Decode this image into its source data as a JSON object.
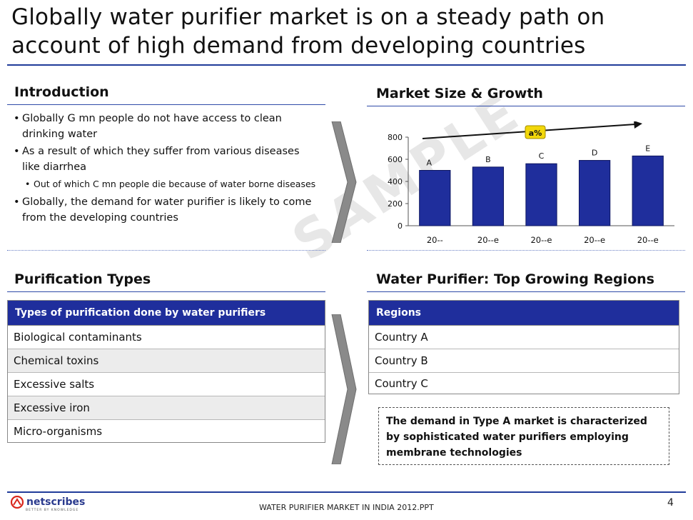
{
  "slide": {
    "title": "Globally water purifier market is on a steady path on account of high demand from developing countries",
    "page_number": "4",
    "footer_text": "WATER PURIFIER  MARKET IN INDIA 2012.PPT",
    "watermark": "SAMPLE",
    "logo": {
      "name": "netscribes",
      "tagline": "BETTER BY KNOWLEDGE",
      "icon": "netscribes-logo-icon"
    }
  },
  "introduction": {
    "heading": "Introduction",
    "bullets": [
      "Globally G mn people do not have access to clean drinking water",
      "As a result of which they suffer from various diseases like diarrhea"
    ],
    "sub_bullet": "Out of which C  mn people die because of water borne diseases",
    "last_bullet": "Globally, the demand for water purifier is likely to come from the developing countries"
  },
  "market": {
    "heading": "Market Size & Growth",
    "cagr_label": "a%"
  },
  "chart_data": {
    "type": "bar",
    "categories": [
      "20--",
      "20--e",
      "20--e",
      "20--e",
      "20--e"
    ],
    "values": [
      500,
      530,
      560,
      590,
      630
    ],
    "data_labels": [
      "A",
      "B",
      "C",
      "D",
      "E"
    ],
    "yticks": [
      0,
      200,
      400,
      600,
      800
    ],
    "ylim": [
      0,
      800
    ],
    "bar_color": "#1f2e9c",
    "title": "",
    "xlabel": "",
    "ylabel": "",
    "grid": false
  },
  "purification": {
    "heading": "Purification Types",
    "table_header": "Types of purification done by water purifiers",
    "rows": [
      "Biological contaminants",
      "Chemical toxins",
      "Excessive salts",
      "Excessive iron",
      "Micro-organisms"
    ]
  },
  "regions": {
    "heading": "Water Purifier: Top Growing Regions",
    "table_header": "Regions",
    "rows": [
      "Country A",
      "Country B",
      "Country C"
    ]
  },
  "note": "The demand in Type A  market is characterized by  sophisticated water purifiers employing membrane technologies",
  "colors": {
    "accent": "#1f2e9c",
    "rule": "#203c9a",
    "alt_row": "#ececec",
    "arrow": "#8a8a8a"
  }
}
